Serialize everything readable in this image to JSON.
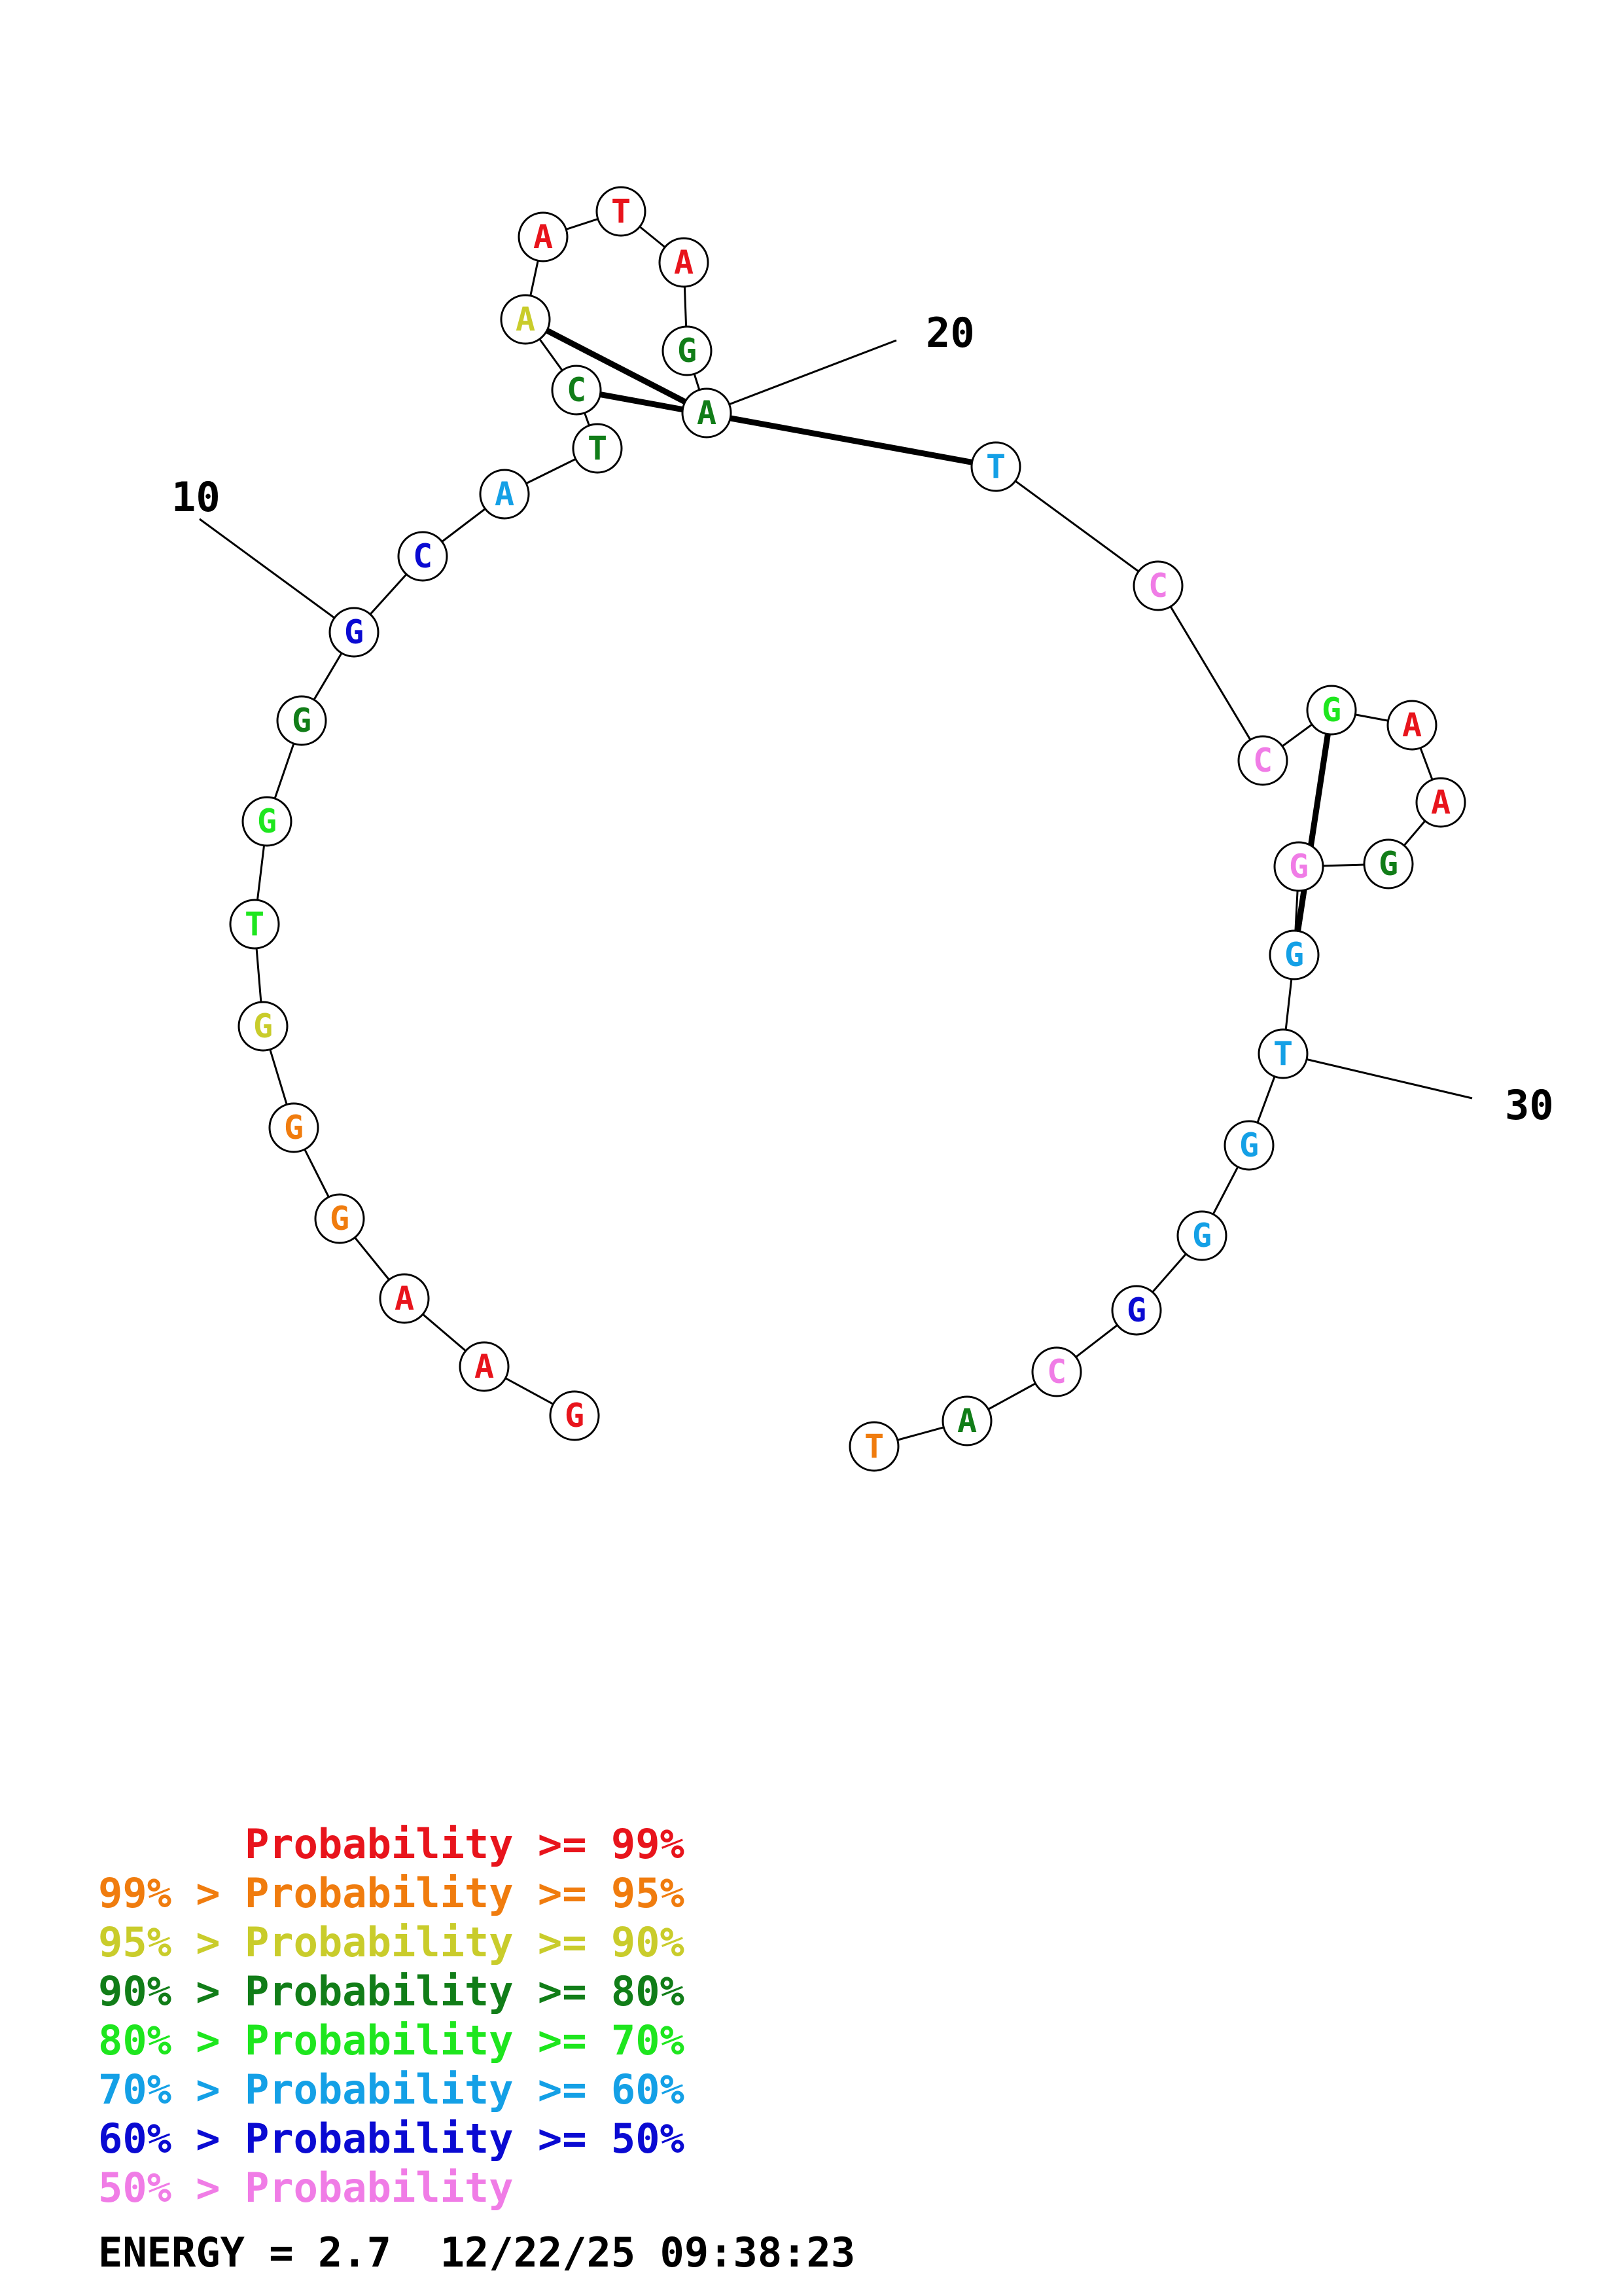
{
  "colors": {
    "p99": "#e8141c",
    "p95": "#f07c0e",
    "p90": "#c9cc2b",
    "p80": "#117d18",
    "p70": "#1ee61e",
    "p60": "#14a0e6",
    "p50": "#0a0ad2",
    "low": "#f07ce6"
  },
  "nucleotides": [
    {
      "base": "G",
      "color": "p99"
    },
    {
      "base": "A",
      "color": "p99"
    },
    {
      "base": "A",
      "color": "p99"
    },
    {
      "base": "G",
      "color": "p95"
    },
    {
      "base": "G",
      "color": "p95"
    },
    {
      "base": "G",
      "color": "p90"
    },
    {
      "base": "T",
      "color": "p70"
    },
    {
      "base": "G",
      "color": "p70"
    },
    {
      "base": "G",
      "color": "p80"
    },
    {
      "base": "G",
      "color": "p50"
    },
    {
      "base": "C",
      "color": "p50"
    },
    {
      "base": "A",
      "color": "p60"
    },
    {
      "base": "T",
      "color": "p80"
    },
    {
      "base": "C",
      "color": "p80"
    },
    {
      "base": "A",
      "color": "p90"
    },
    {
      "base": "A",
      "color": "p99"
    },
    {
      "base": "T",
      "color": "p99"
    },
    {
      "base": "A",
      "color": "p99"
    },
    {
      "base": "G",
      "color": "p80"
    },
    {
      "base": "A",
      "color": "p80"
    },
    {
      "base": "T",
      "color": "p60"
    },
    {
      "base": "C",
      "color": "low"
    },
    {
      "base": "C",
      "color": "low"
    },
    {
      "base": "G",
      "color": "p70"
    },
    {
      "base": "A",
      "color": "p99"
    },
    {
      "base": "A",
      "color": "p99"
    },
    {
      "base": "G",
      "color": "p80"
    },
    {
      "base": "G",
      "color": "low"
    },
    {
      "base": "G",
      "color": "p60"
    },
    {
      "base": "T",
      "color": "p60"
    },
    {
      "base": "G",
      "color": "p60"
    },
    {
      "base": "G",
      "color": "p60"
    },
    {
      "base": "G",
      "color": "p50"
    },
    {
      "base": "C",
      "color": "low"
    },
    {
      "base": "A",
      "color": "p80"
    },
    {
      "base": "T",
      "color": "p95"
    }
  ],
  "pairs": [
    [
      13,
      20
    ],
    [
      14,
      19
    ],
    [
      23,
      28
    ]
  ],
  "ticks": [
    {
      "index": 10,
      "label": "10"
    },
    {
      "index": 20,
      "label": "20"
    },
    {
      "index": 30,
      "label": "30"
    }
  ],
  "legend": [
    {
      "prefix": "",
      "text": "Probability >= 99%",
      "color": "p99"
    },
    {
      "prefix": "99% > ",
      "text": "Probability >= 95%",
      "color": "p95"
    },
    {
      "prefix": "95% > ",
      "text": "Probability >= 90%",
      "color": "p90"
    },
    {
      "prefix": "90% > ",
      "text": "Probability >= 80%",
      "color": "p80"
    },
    {
      "prefix": "80% > ",
      "text": "Probability >= 70%",
      "color": "p70"
    },
    {
      "prefix": "70% > ",
      "text": "Probability >= 60%",
      "color": "p60"
    },
    {
      "prefix": "60% > ",
      "text": "Probability >= 50%",
      "color": "p50"
    },
    {
      "prefix": "50% > ",
      "text": "Probability",
      "color": "low"
    }
  ],
  "footer": {
    "energy": "ENERGY = 2.7",
    "timestamp": "12/22/25 09:38:23"
  }
}
